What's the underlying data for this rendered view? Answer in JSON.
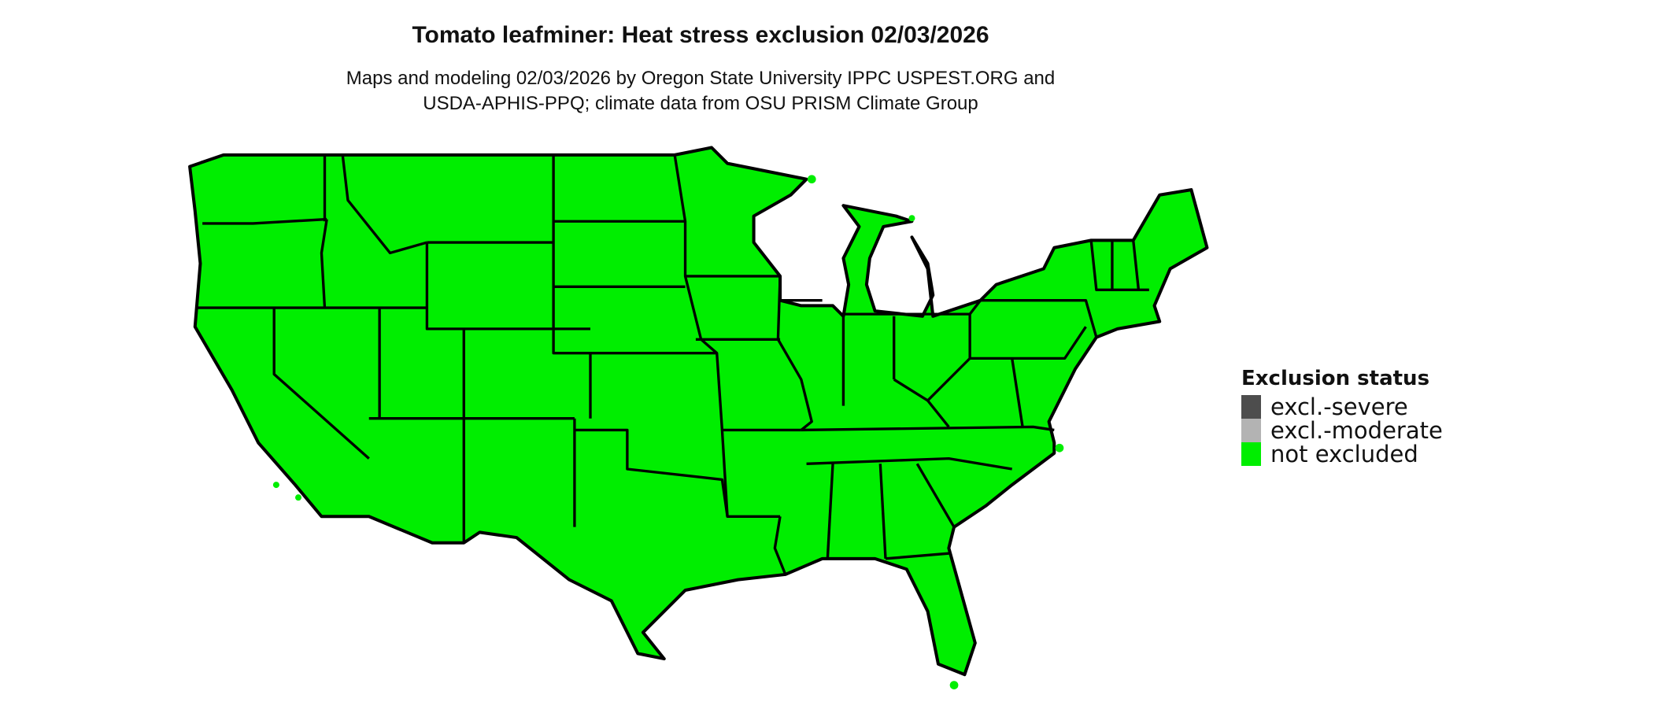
{
  "title": "Tomato leafminer: Heat stress exclusion 02/03/2026",
  "subtitle_line1": "Maps and modeling 02/03/2026 by Oregon State University IPPC USPEST.ORG and",
  "subtitle_line2": "USDA-APHIS-PPQ; climate data from OSU PRISM Climate Group",
  "map": {
    "region": "Contiguous United States",
    "fill_status": "not excluded",
    "border_color": "#000000"
  },
  "legend": {
    "title": "Exclusion status",
    "items": [
      {
        "label": "excl.-severe",
        "color": "#4d4d4d"
      },
      {
        "label": "excl.-moderate",
        "color": "#b3b3b3"
      },
      {
        "label": "not excluded",
        "color": "#00ee00"
      }
    ]
  }
}
